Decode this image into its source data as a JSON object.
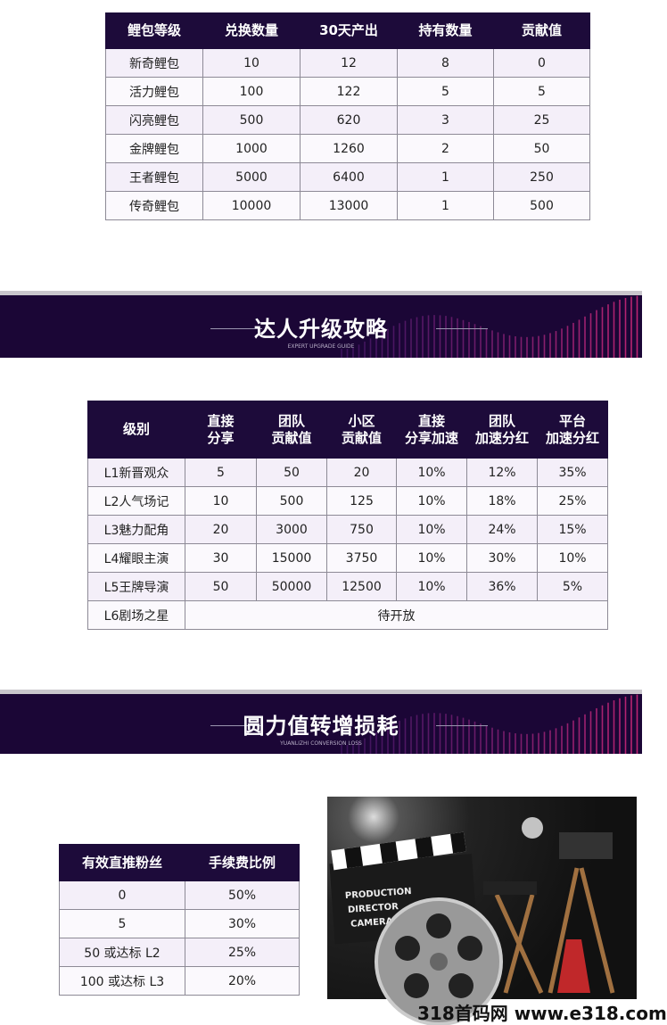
{
  "table1": {
    "headers": [
      "鲤包等级",
      "兑换数量",
      "30天产出",
      "持有数量",
      "贡献值"
    ],
    "rows": [
      [
        "新奇鲤包",
        "10",
        "12",
        "8",
        "0"
      ],
      [
        "活力鲤包",
        "100",
        "122",
        "5",
        "5"
      ],
      [
        "闪亮鲤包",
        "500",
        "620",
        "3",
        "25"
      ],
      [
        "金牌鲤包",
        "1000",
        "1260",
        "2",
        "50"
      ],
      [
        "王者鲤包",
        "5000",
        "6400",
        "1",
        "250"
      ],
      [
        "传奇鲤包",
        "10000",
        "13000",
        "1",
        "500"
      ]
    ]
  },
  "banner1": {
    "title": "达人升级攻略",
    "subtitle": "EXPERT UPGRADE GUIDE"
  },
  "table2": {
    "headers": [
      "级别",
      "直接\n分享",
      "团队\n贡献值",
      "小区\n贡献值",
      "直接\n分享加速",
      "团队\n加速分红",
      "平台\n加速分红"
    ],
    "rows": [
      [
        "L1新晋观众",
        "5",
        "50",
        "20",
        "10%",
        "12%",
        "35%"
      ],
      [
        "L2人气场记",
        "10",
        "500",
        "125",
        "10%",
        "18%",
        "25%"
      ],
      [
        "L3魅力配角",
        "20",
        "3000",
        "750",
        "10%",
        "24%",
        "15%"
      ],
      [
        "L4耀眼主演",
        "30",
        "15000",
        "3750",
        "10%",
        "30%",
        "10%"
      ],
      [
        "L5王牌导演",
        "50",
        "50000",
        "12500",
        "10%",
        "36%",
        "5%"
      ]
    ],
    "last_row": {
      "level": "L6剧场之星",
      "note": "待开放"
    }
  },
  "banner2": {
    "title": "圆力值转增损耗",
    "subtitle": "YUANLIZHI CONVERSION LOSS"
  },
  "table3": {
    "headers": [
      "有效直推粉丝",
      "手续费比例"
    ],
    "rows": [
      [
        "0",
        "50%"
      ],
      [
        "5",
        "30%"
      ],
      [
        "50 或达标 L2",
        "25%"
      ],
      [
        "100 或达标 L3",
        "20%"
      ]
    ]
  },
  "image": {
    "clapper_lines": [
      "PRODUCTION",
      "DIRECTOR",
      "CAMERA"
    ]
  },
  "watermark": "318首码网 www.e318.com"
}
